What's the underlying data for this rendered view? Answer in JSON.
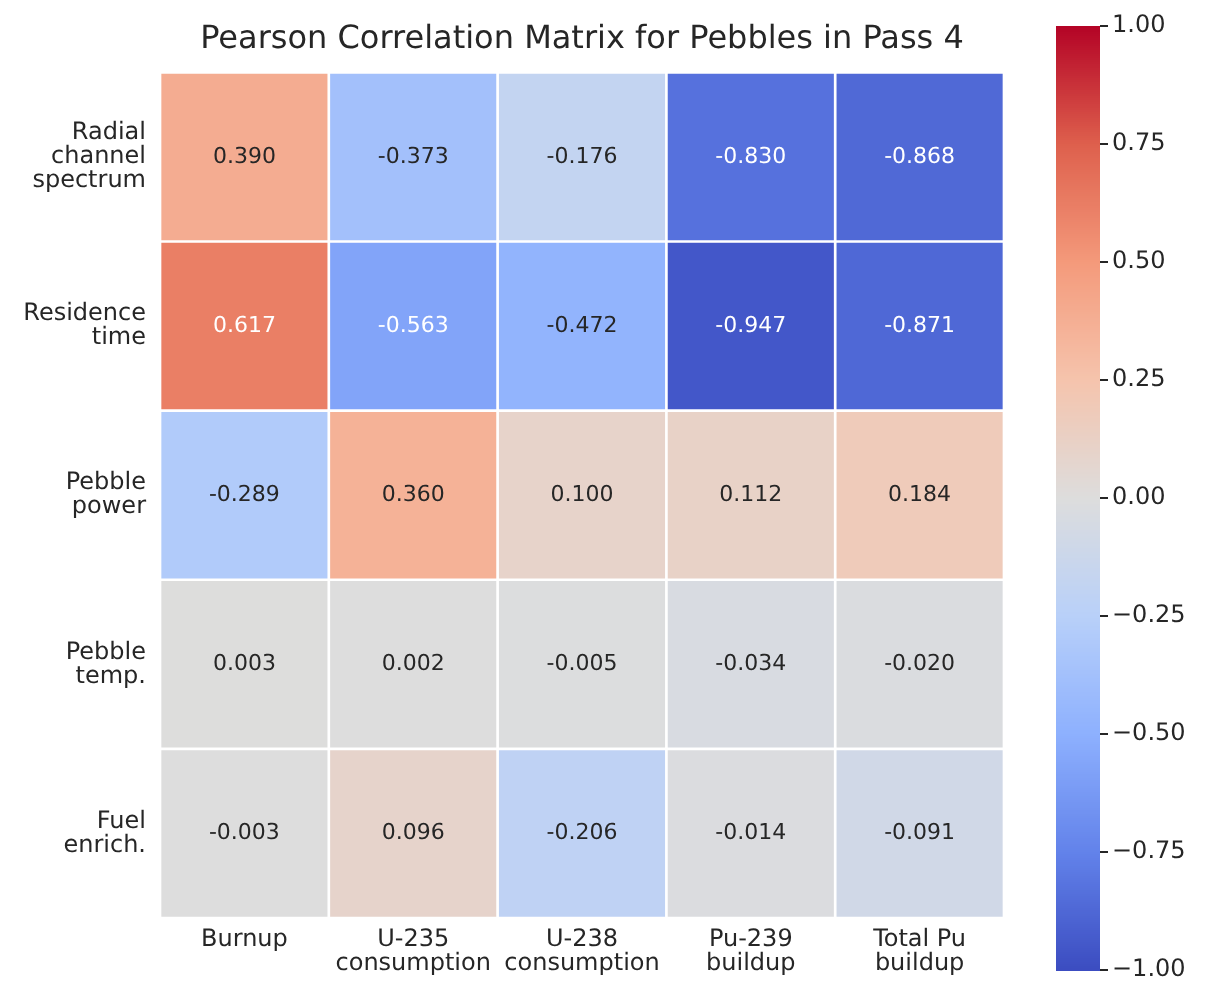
{
  "chart_data": {
    "type": "heatmap",
    "title": "Pearson Correlation Matrix for Pebbles in Pass 4",
    "categories": [
      "Burnup",
      "U-235 consumption",
      "U-238 consumption",
      "Pu-239 buildup",
      "Total Pu buildup"
    ],
    "y_categories": [
      "Radial channel spectrum",
      "Residence time",
      "Pebble power",
      "Pebble temp.",
      "Fuel enrich."
    ],
    "cells": [
      [
        0.39,
        -0.373,
        -0.176,
        -0.83,
        -0.868
      ],
      [
        0.617,
        -0.563,
        -0.472,
        -0.947,
        -0.871
      ],
      [
        -0.289,
        0.36,
        0.1,
        0.112,
        0.184
      ],
      [
        0.003,
        0.002,
        -0.005,
        -0.034,
        -0.02
      ],
      [
        -0.003,
        0.096,
        -0.206,
        -0.014,
        -0.091
      ]
    ],
    "cell_labels": [
      [
        "0.390",
        "-0.373",
        "-0.176",
        "-0.830",
        "-0.868"
      ],
      [
        "0.617",
        "-0.563",
        "-0.472",
        "-0.947",
        "-0.871"
      ],
      [
        "-0.289",
        "0.360",
        "0.100",
        "0.112",
        "0.184"
      ],
      [
        "0.003",
        "0.002",
        "-0.005",
        "-0.034",
        "-0.020"
      ],
      [
        "-0.003",
        "0.096",
        "-0.206",
        "-0.014",
        "-0.091"
      ]
    ],
    "clim": [
      -1,
      1
    ],
    "cticks": [
      {
        "value": 1,
        "label": "1.00"
      },
      {
        "value": 0.75,
        "label": "0.75"
      },
      {
        "value": 0.5,
        "label": "0.50"
      },
      {
        "value": 0.25,
        "label": "0.25"
      },
      {
        "value": 0,
        "label": "0.00"
      },
      {
        "value": -0.25,
        "label": "−0.25"
      },
      {
        "value": -0.5,
        "label": "−0.50"
      },
      {
        "value": -0.75,
        "label": "−0.75"
      },
      {
        "value": -1,
        "label": "−1.00"
      }
    ]
  }
}
